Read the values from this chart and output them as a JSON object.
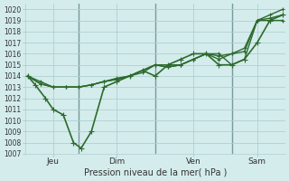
{
  "xlabel": "Pression niveau de la mer( hPa )",
  "bg_color": "#d4ecec",
  "grid_color": "#b0d0d0",
  "line_color": "#2d6a2d",
  "vline_color": "#7a9a9a",
  "ylim": [
    1007,
    1020.5
  ],
  "yticks": [
    1007,
    1008,
    1009,
    1010,
    1011,
    1012,
    1013,
    1014,
    1015,
    1016,
    1017,
    1018,
    1019,
    1020
  ],
  "xtick_labels": [
    "Jeu",
    "Dim",
    "Ven",
    "Sam"
  ],
  "xtick_pos": [
    0.5,
    3.5,
    6.5,
    9.5
  ],
  "vline_pos": [
    0,
    2,
    5,
    8
  ],
  "lines": [
    {
      "x": [
        0,
        0.5,
        1,
        1.5,
        2,
        2.5,
        3,
        3.5,
        4,
        4.5,
        5,
        5.5,
        6,
        6.5,
        7,
        7.5,
        8,
        8.5,
        9,
        9.5,
        10
      ],
      "y": [
        1014,
        1013.5,
        1013,
        1013,
        1013,
        1013.2,
        1013.5,
        1013.8,
        1014,
        1014.5,
        1015,
        1014.8,
        1015,
        1015.5,
        1016,
        1015.8,
        1016,
        1016.5,
        1019,
        1019.5,
        1020
      ],
      "lw": 1.0,
      "marker": "+",
      "ms": 3
    },
    {
      "x": [
        0,
        0.5,
        1,
        1.5,
        2,
        2.5,
        3,
        3.5,
        4,
        4.5,
        5,
        5.5,
        6,
        6.5,
        7,
        7.5,
        8,
        8.5,
        9,
        9.5,
        10
      ],
      "y": [
        1014,
        1013.3,
        1013,
        1013,
        1013,
        1013.2,
        1013.5,
        1013.7,
        1014,
        1014.3,
        1015,
        1014.8,
        1015,
        1015.5,
        1016,
        1015.5,
        1016,
        1016.2,
        1019,
        1019.2,
        1019.5
      ],
      "lw": 1.0,
      "marker": "+",
      "ms": 3
    },
    {
      "x": [
        0,
        0.5,
        1,
        1.5,
        2,
        2.5,
        3,
        3.5,
        4,
        4.5,
        5,
        5.5,
        6,
        6.5,
        7,
        7.5,
        8,
        8.5,
        9,
        9.5,
        10
      ],
      "y": [
        1014,
        1013.3,
        1013,
        1013,
        1013,
        1013.2,
        1013.5,
        1013.7,
        1014,
        1014.5,
        1015,
        1015,
        1015,
        1015.5,
        1016,
        1016,
        1015,
        1015.5,
        1019,
        1019,
        1019
      ],
      "lw": 1.0,
      "marker": "+",
      "ms": 3
    },
    {
      "x": [
        0,
        0.3,
        0.7,
        1.0,
        1.4,
        1.8,
        2.1,
        2.5,
        3.0,
        3.5,
        4.0,
        4.5,
        5.0,
        5.5,
        6.0,
        6.5,
        7.0,
        7.5,
        8.0,
        8.5,
        9.0,
        9.5,
        10.0
      ],
      "y": [
        1014,
        1013.2,
        1012,
        1011,
        1010.5,
        1008,
        1007.5,
        1009,
        1013,
        1013.5,
        1014,
        1014.5,
        1014,
        1015,
        1015.5,
        1016,
        1016,
        1015,
        1015,
        1015.5,
        1017,
        1019,
        1019.5
      ],
      "lw": 1.2,
      "marker": "+",
      "ms": 4
    }
  ],
  "figsize": [
    3.2,
    2.0
  ],
  "dpi": 100
}
